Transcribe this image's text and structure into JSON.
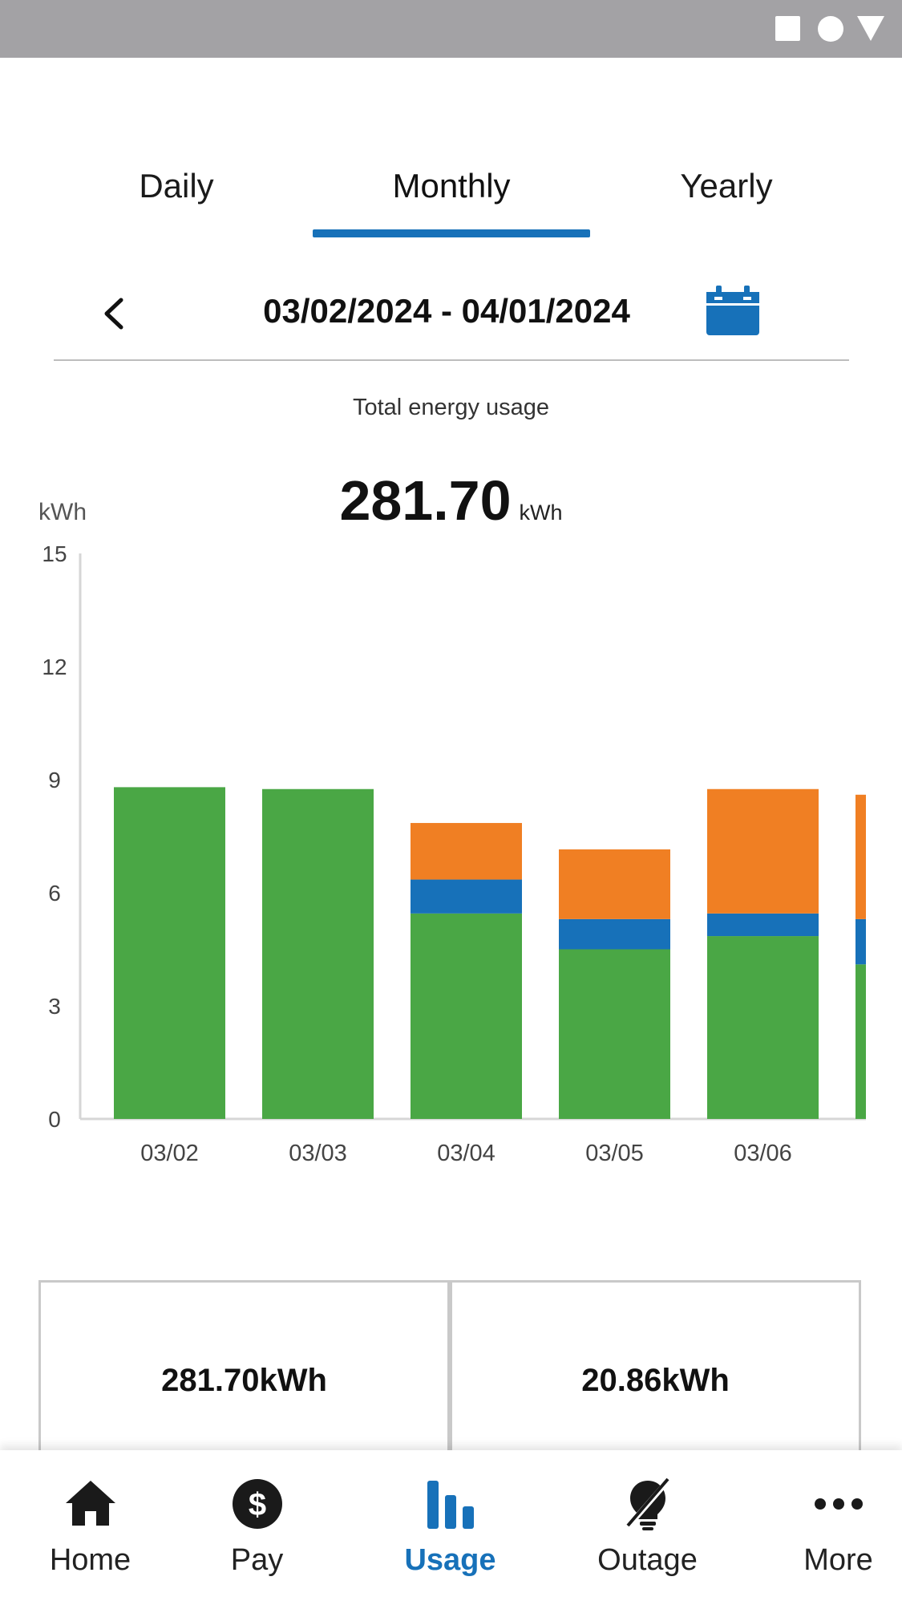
{
  "tabs": [
    {
      "label": "Daily",
      "active": false
    },
    {
      "label": "Monthly",
      "active": true
    },
    {
      "label": "Yearly",
      "active": false
    }
  ],
  "date_nav": {
    "range": "03/02/2024 - 04/01/2024",
    "back_icon": "chevron-left-icon",
    "calendar_icon": "calendar-icon"
  },
  "usage": {
    "label": "Total energy usage",
    "total": "281.70",
    "unit": "kWh"
  },
  "chart_data": {
    "type": "bar",
    "stacked": true,
    "ylabel": "kWh",
    "ylim": [
      0,
      15
    ],
    "yticks": [
      0,
      3,
      6,
      9,
      12,
      15
    ],
    "categories": [
      "03/02",
      "03/03",
      "03/04",
      "03/05",
      "03/06",
      ""
    ],
    "series": [
      {
        "color": "#4aa745",
        "values": [
          8.8,
          8.75,
          5.45,
          4.5,
          4.85,
          4.1
        ]
      },
      {
        "color": "#1771b9",
        "values": [
          0,
          0,
          0.9,
          0.8,
          0.6,
          1.2
        ]
      },
      {
        "color": "#f07f23",
        "values": [
          0,
          0,
          1.5,
          1.85,
          3.3,
          3.3
        ]
      }
    ],
    "grid": false,
    "legend": "none"
  },
  "summary": {
    "cards": [
      {
        "value": "281.70kWh"
      },
      {
        "value": "20.86kWh"
      }
    ]
  },
  "bottom_nav": [
    {
      "label": "Home",
      "icon": "home-icon",
      "active": false
    },
    {
      "label": "Pay",
      "icon": "dollar-icon",
      "active": false
    },
    {
      "label": "Usage",
      "icon": "bar-chart-icon",
      "active": true
    },
    {
      "label": "Outage",
      "icon": "outage-bulb-icon",
      "active": false
    },
    {
      "label": "More",
      "icon": "more-icon",
      "active": false
    }
  ],
  "colors": {
    "accent": "#1771b9",
    "status_bar": "#a3a2a5"
  }
}
